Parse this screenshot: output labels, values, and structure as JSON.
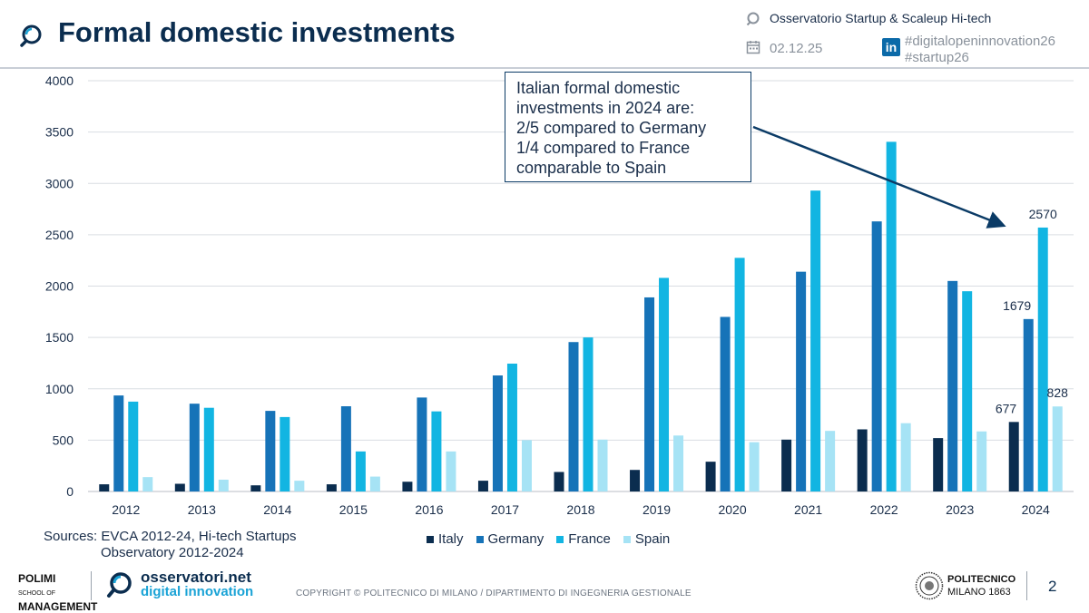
{
  "header": {
    "title": "Formal domestic investments",
    "observatory": "Osservatorio Startup & Scaleup Hi-tech",
    "date": "02.12.25",
    "hashtag_1": "#digitalopeninnovation26",
    "hashtag_2": "#startup26",
    "icons": [
      "magnifier-logo-icon",
      "calendar-icon",
      "linkedin-icon"
    ]
  },
  "callout": {
    "lines": [
      "Italian formal domestic",
      "investments in 2024 are:",
      "2/5 compared to Germany",
      "1/4 compared to France",
      "comparable to Spain"
    ]
  },
  "chart_data": {
    "type": "bar",
    "title": "",
    "xlabel": "",
    "ylabel": "",
    "categories": [
      "2012",
      "2013",
      "2014",
      "2015",
      "2016",
      "2017",
      "2018",
      "2019",
      "2020",
      "2021",
      "2022",
      "2023",
      "2024"
    ],
    "series": [
      {
        "name": "Italy",
        "color": "#0b2d4f",
        "values": [
          70,
          75,
          60,
          70,
          95,
          105,
          190,
          210,
          290,
          505,
          605,
          520,
          677
        ]
      },
      {
        "name": "Germany",
        "color": "#1673b8",
        "values": [
          935,
          855,
          785,
          830,
          915,
          1130,
          1455,
          1890,
          1700,
          2140,
          2630,
          2050,
          1679
        ]
      },
      {
        "name": "France",
        "color": "#12b5e2",
        "values": [
          875,
          815,
          725,
          390,
          780,
          1245,
          1500,
          2080,
          2275,
          2930,
          3405,
          1950,
          2570
        ]
      },
      {
        "name": "Spain",
        "color": "#a6e3f5",
        "values": [
          140,
          115,
          105,
          145,
          390,
          500,
          505,
          545,
          480,
          590,
          665,
          585,
          828
        ]
      }
    ],
    "ylim": [
      0,
      4000
    ],
    "yticks": [
      0,
      500,
      1000,
      1500,
      2000,
      2500,
      3000,
      3500,
      4000
    ],
    "grid": true,
    "legend": "bottom",
    "data_labels": [
      {
        "category": "2024",
        "series": "Italy",
        "text": "677"
      },
      {
        "category": "2024",
        "series": "Germany",
        "text": "1679"
      },
      {
        "category": "2024",
        "series": "France",
        "text": "2570"
      },
      {
        "category": "2024",
        "series": "Spain",
        "text": "828"
      }
    ]
  },
  "sources": {
    "line1": "Sources: EVCA 2012-24, Hi-tech Startups",
    "line2": "Observatory 2012-2024"
  },
  "footer": {
    "polimi_line1": "POLIMI",
    "polimi_school": "SCHOOL OF",
    "polimi_line2": "MANAGEMENT",
    "osservatori_name": "osservatori.net",
    "osservatori_sub": "digital innovation",
    "copyright": "COPYRIGHT © POLITECNICO DI MILANO / DIPARTIMENTO DI INGEGNERIA GESTIONALE",
    "politecnico_name": "POLITECNICO",
    "politecnico_sub": "MILANO 1863",
    "page_number": "2"
  }
}
